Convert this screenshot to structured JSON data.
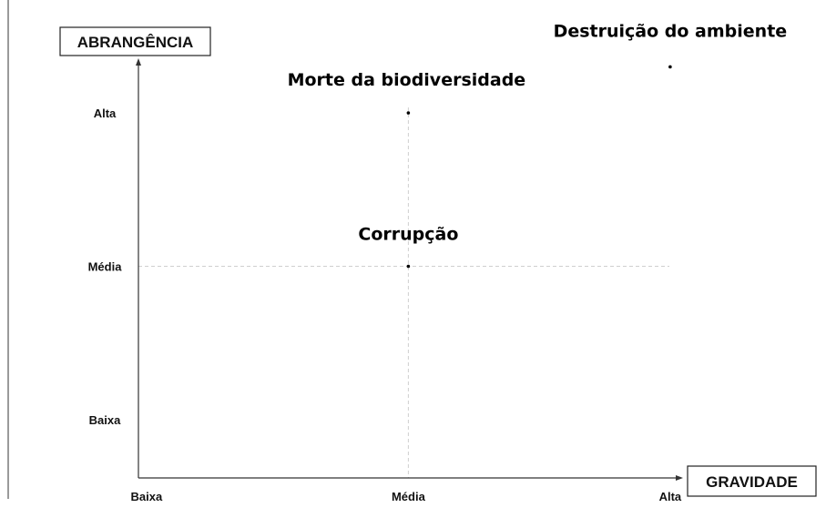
{
  "chart_data": {
    "type": "scatter",
    "x_title": "GRAVIDADE",
    "y_title": "ABRANGÊNCIA",
    "x_ticks": [
      "Baixa",
      "Média",
      "Alta"
    ],
    "y_ticks": [
      "Baixa",
      "Média",
      "Alta"
    ],
    "points": [
      {
        "label": "Destruição do ambiente",
        "x": 3,
        "y": 3.3
      },
      {
        "label": "Morte da biodiversidade",
        "x": 2,
        "y": 3
      },
      {
        "label": "Corrupção",
        "x": 2,
        "y": 2
      }
    ],
    "xlim": [
      0.6,
      3.6
    ],
    "ylim": [
      0.6,
      3.6
    ],
    "reference_lines": {
      "x": 2,
      "y": 2
    },
    "grid": false
  }
}
